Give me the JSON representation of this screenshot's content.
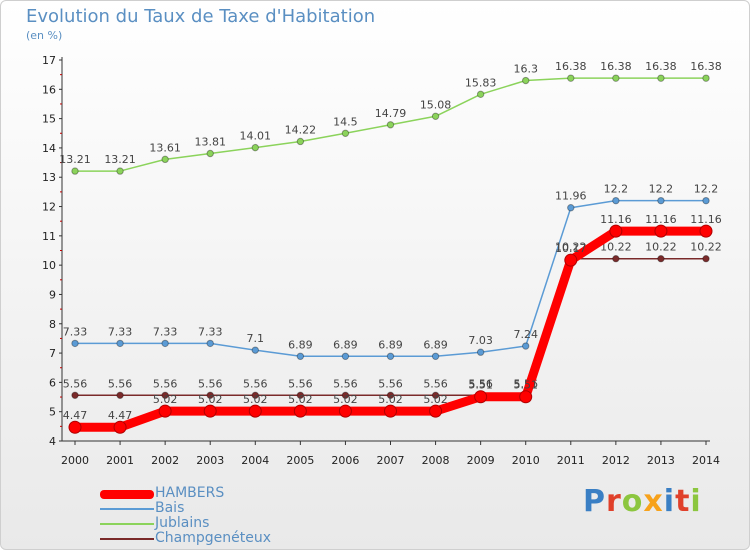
{
  "title": "Evolution du Taux de Taxe d'Habitation",
  "subtitle": "(en %)",
  "logo": {
    "text": "Proxiti",
    "letter_colors": [
      "#3a7fc4",
      "#e0402a",
      "#8cc63f",
      "#f7a21b",
      "#3a7fc4",
      "#e0402a",
      "#8cc63f"
    ]
  },
  "chart_data": {
    "type": "line",
    "title": "Evolution du Taux de Taxe d'Habitation",
    "subtitle": "(en %)",
    "xlabel": "",
    "ylabel": "",
    "x": [
      "2000",
      "2001",
      "2002",
      "2003",
      "2004",
      "2005",
      "2006",
      "2007",
      "2008",
      "2009",
      "2010",
      "2011",
      "2012",
      "2013",
      "2014"
    ],
    "ylim": [
      4,
      17
    ],
    "yticks": [
      "4",
      "5",
      "6",
      "7",
      "8",
      "9",
      "10",
      "11",
      "12",
      "13",
      "14",
      "15",
      "16",
      "17"
    ],
    "grid": false,
    "legend_position": "bottom-left",
    "series": [
      {
        "name": "HAMBERS",
        "color": "#ff0000",
        "emphasis": true,
        "values": [
          4.47,
          4.47,
          5.02,
          5.02,
          5.02,
          5.02,
          5.02,
          5.02,
          5.02,
          5.51,
          5.51,
          10.17,
          11.16,
          11.16,
          11.16
        ],
        "labels": [
          "4.47",
          "4.47",
          "5.02",
          "5.02",
          "5.02",
          "5.02",
          "5.02",
          "5.02",
          "5.02",
          "5.51",
          "5.51",
          "10.17",
          "11.16",
          "11.16",
          "11.16"
        ]
      },
      {
        "name": "Bais",
        "color": "#5b9bd5",
        "values": [
          7.33,
          7.33,
          7.33,
          7.33,
          7.1,
          6.89,
          6.89,
          6.89,
          6.89,
          7.03,
          7.24,
          11.96,
          12.2,
          12.2,
          12.2
        ],
        "labels": [
          "7.33",
          "7.33",
          "7.33",
          "7.33",
          "7.1",
          "6.89",
          "6.89",
          "6.89",
          "6.89",
          "7.03",
          "7.24",
          "11.96",
          "12.2",
          "12.2",
          "12.2"
        ]
      },
      {
        "name": "Jublains",
        "color": "#8bd35b",
        "values": [
          13.21,
          13.21,
          13.61,
          13.81,
          14.01,
          14.22,
          14.5,
          14.79,
          15.08,
          15.83,
          16.3,
          16.38,
          16.38,
          16.38,
          16.38
        ],
        "labels": [
          "13.21",
          "13.21",
          "13.61",
          "13.81",
          "14.01",
          "14.22",
          "14.5",
          "14.79",
          "15.08",
          "15.83",
          "16.3",
          "16.38",
          "16.38",
          "16.38",
          "16.38"
        ]
      },
      {
        "name": "Champgenéteux",
        "color": "#7a2a2a",
        "values": [
          5.56,
          5.56,
          5.56,
          5.56,
          5.56,
          5.56,
          5.56,
          5.56,
          5.56,
          5.56,
          5.56,
          10.22,
          10.22,
          10.22,
          10.22
        ],
        "labels": [
          "5.56",
          "5.56",
          "5.56",
          "5.56",
          "5.56",
          "5.56",
          "5.56",
          "5.56",
          "5.56",
          "5.56",
          "5.56",
          "10.22",
          "10.22",
          "10.22",
          "10.22"
        ]
      }
    ]
  }
}
